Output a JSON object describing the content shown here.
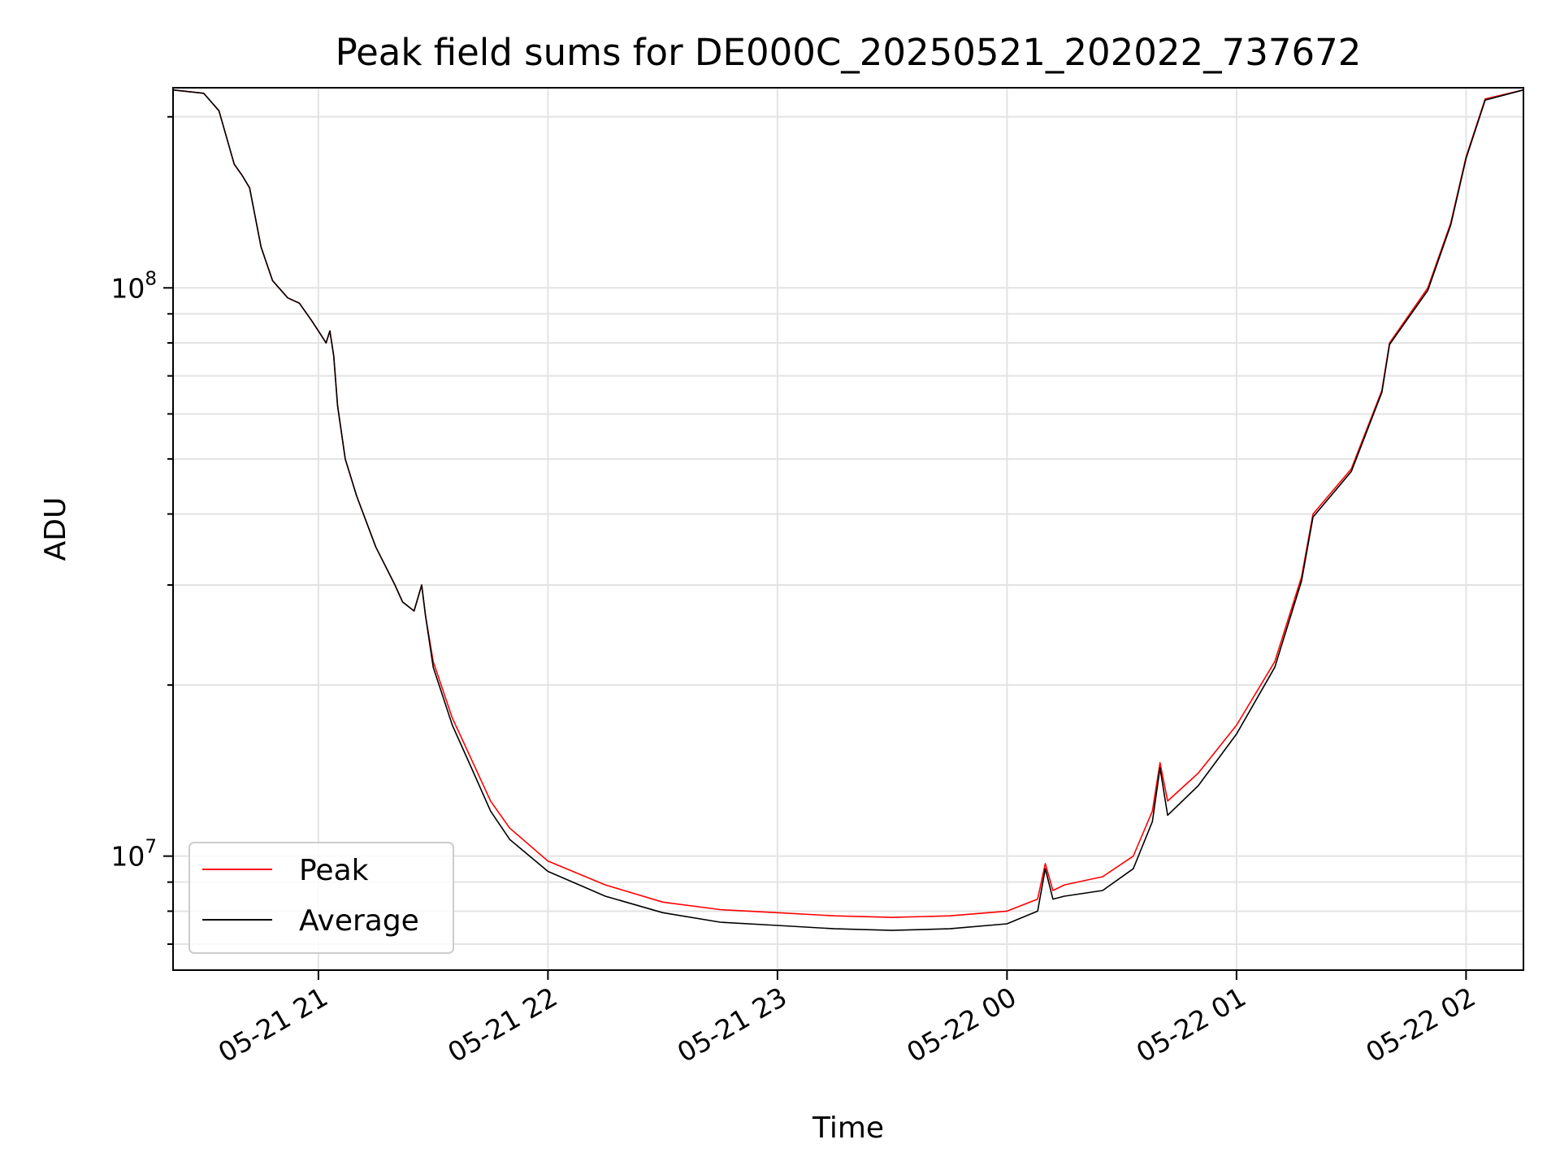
{
  "chart_data": {
    "type": "line",
    "title": "Peak field sums for DE000C_20250521_202022_737672",
    "xlabel": "Time",
    "ylabel": "ADU",
    "yscale": "log",
    "xlim": [
      "2025-05-21 20:22",
      "2025-05-22 02:15"
    ],
    "ylim": [
      6300000,
      225000000
    ],
    "x_ticks": [
      "2025-05-21 21:00",
      "2025-05-21 22:00",
      "2025-05-21 23:00",
      "2025-05-22 00:00",
      "2025-05-22 01:00",
      "2025-05-22 02:00"
    ],
    "x_tick_labels": [
      "05-21 21",
      "05-21 22",
      "05-21 23",
      "05-22 00",
      "05-22 01",
      "05-22 02"
    ],
    "y_ticks": [
      10000000,
      100000000
    ],
    "y_tick_labels": [
      {
        "base": "10",
        "exp": "7"
      },
      {
        "base": "10",
        "exp": "8"
      }
    ],
    "grid": true,
    "legend_position": "lower-left",
    "series": [
      {
        "name": "Peak",
        "color": "#ff0000",
        "x": [
          "2025-05-21 20:22",
          "2025-05-21 20:30",
          "2025-05-21 20:34",
          "2025-05-21 20:38",
          "2025-05-21 20:40",
          "2025-05-21 20:42",
          "2025-05-21 20:45",
          "2025-05-21 20:48",
          "2025-05-21 20:52",
          "2025-05-21 20:55",
          "2025-05-21 20:58",
          "2025-05-21 21:00",
          "2025-05-21 21:02",
          "2025-05-21 21:03",
          "2025-05-21 21:04",
          "2025-05-21 21:05",
          "2025-05-21 21:07",
          "2025-05-21 21:10",
          "2025-05-21 21:15",
          "2025-05-21 21:20",
          "2025-05-21 21:22",
          "2025-05-21 21:25",
          "2025-05-21 21:27",
          "2025-05-21 21:28",
          "2025-05-21 21:30",
          "2025-05-21 21:35",
          "2025-05-21 21:40",
          "2025-05-21 21:45",
          "2025-05-21 21:50",
          "2025-05-21 22:00",
          "2025-05-21 22:15",
          "2025-05-21 22:30",
          "2025-05-21 22:45",
          "2025-05-21 23:00",
          "2025-05-21 23:15",
          "2025-05-21 23:30",
          "2025-05-21 23:45",
          "2025-05-22 00:00",
          "2025-05-22 00:08",
          "2025-05-22 00:10",
          "2025-05-22 00:12",
          "2025-05-22 00:15",
          "2025-05-22 00:25",
          "2025-05-22 00:33",
          "2025-05-22 00:38",
          "2025-05-22 00:40",
          "2025-05-22 00:42",
          "2025-05-22 00:50",
          "2025-05-22 01:00",
          "2025-05-22 01:10",
          "2025-05-22 01:17",
          "2025-05-22 01:20",
          "2025-05-22 01:30",
          "2025-05-22 01:38",
          "2025-05-22 01:40",
          "2025-05-22 01:50",
          "2025-05-22 01:56",
          "2025-05-22 02:00",
          "2025-05-22 02:05",
          "2025-05-22 02:15"
        ],
        "values": [
          223000000,
          220000000,
          205000000,
          165000000,
          158000000,
          150000000,
          118000000,
          103000000,
          96000000,
          94000000,
          88000000,
          84000000,
          80000000,
          84000000,
          76000000,
          62000000,
          50000000,
          43000000,
          35000000,
          30000000,
          28000000,
          27000000,
          30000000,
          26500000,
          22000000,
          17500000,
          14800000,
          12500000,
          11200000,
          9800000,
          8900000,
          8300000,
          8050000,
          7950000,
          7850000,
          7800000,
          7850000,
          8000000,
          8400000,
          9700000,
          8700000,
          8900000,
          9200000,
          10000000,
          12000000,
          14600000,
          12500000,
          14000000,
          17000000,
          22000000,
          31000000,
          40000000,
          48000000,
          66000000,
          80000000,
          100000000,
          130000000,
          170000000,
          215000000,
          223000000
        ]
      },
      {
        "name": "Average",
        "color": "#000000",
        "x": [
          "2025-05-21 20:22",
          "2025-05-21 20:30",
          "2025-05-21 20:34",
          "2025-05-21 20:38",
          "2025-05-21 20:40",
          "2025-05-21 20:42",
          "2025-05-21 20:45",
          "2025-05-21 20:48",
          "2025-05-21 20:52",
          "2025-05-21 20:55",
          "2025-05-21 20:58",
          "2025-05-21 21:00",
          "2025-05-21 21:02",
          "2025-05-21 21:03",
          "2025-05-21 21:04",
          "2025-05-21 21:05",
          "2025-05-21 21:07",
          "2025-05-21 21:10",
          "2025-05-21 21:15",
          "2025-05-21 21:20",
          "2025-05-21 21:22",
          "2025-05-21 21:25",
          "2025-05-21 21:27",
          "2025-05-21 21:28",
          "2025-05-21 21:30",
          "2025-05-21 21:35",
          "2025-05-21 21:40",
          "2025-05-21 21:45",
          "2025-05-21 21:50",
          "2025-05-21 22:00",
          "2025-05-21 22:15",
          "2025-05-21 22:30",
          "2025-05-21 22:45",
          "2025-05-21 23:00",
          "2025-05-21 23:15",
          "2025-05-21 23:30",
          "2025-05-21 23:45",
          "2025-05-22 00:00",
          "2025-05-22 00:08",
          "2025-05-22 00:10",
          "2025-05-22 00:12",
          "2025-05-22 00:15",
          "2025-05-22 00:25",
          "2025-05-22 00:33",
          "2025-05-22 00:38",
          "2025-05-22 00:40",
          "2025-05-22 00:42",
          "2025-05-22 00:50",
          "2025-05-22 01:00",
          "2025-05-22 01:10",
          "2025-05-22 01:17",
          "2025-05-22 01:20",
          "2025-05-22 01:30",
          "2025-05-22 01:38",
          "2025-05-22 01:40",
          "2025-05-22 01:50",
          "2025-05-22 01:56",
          "2025-05-22 02:00",
          "2025-05-22 02:05",
          "2025-05-22 02:15"
        ],
        "values": [
          223000000,
          220000000,
          205000000,
          165000000,
          158000000,
          150000000,
          118000000,
          103000000,
          96000000,
          94000000,
          88000000,
          84000000,
          80000000,
          84000000,
          76000000,
          62000000,
          50000000,
          43000000,
          35000000,
          30000000,
          28000000,
          27000000,
          30000000,
          26500000,
          21500000,
          17000000,
          14300000,
          12000000,
          10700000,
          9400000,
          8500000,
          7950000,
          7650000,
          7550000,
          7450000,
          7400000,
          7450000,
          7600000,
          8000000,
          9500000,
          8400000,
          8500000,
          8700000,
          9500000,
          11500000,
          14300000,
          11800000,
          13300000,
          16400000,
          21500000,
          30500000,
          39500000,
          47500000,
          65500000,
          79500000,
          99000000,
          129000000,
          169000000,
          214000000,
          223000000
        ]
      }
    ]
  }
}
